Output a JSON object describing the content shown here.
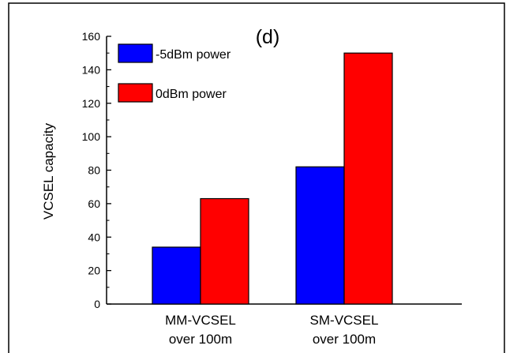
{
  "chart_data": {
    "type": "bar",
    "title": "(d)",
    "ylabel": "VCSEL capacity",
    "xlabel": "",
    "ylim": [
      0,
      160
    ],
    "yticks": [
      0,
      20,
      40,
      60,
      80,
      100,
      120,
      140,
      160
    ],
    "categories": [
      [
        "MM-VCSEL",
        "over 100m"
      ],
      [
        "SM-VCSEL",
        "over 100m"
      ]
    ],
    "series": [
      {
        "name": "-5dBm power",
        "color": "#0000ff",
        "values": [
          34,
          82
        ]
      },
      {
        "name": "0dBm power",
        "color": "#ff0000",
        "values": [
          63,
          150
        ]
      }
    ],
    "legend_position": "top-left",
    "grid": false
  }
}
